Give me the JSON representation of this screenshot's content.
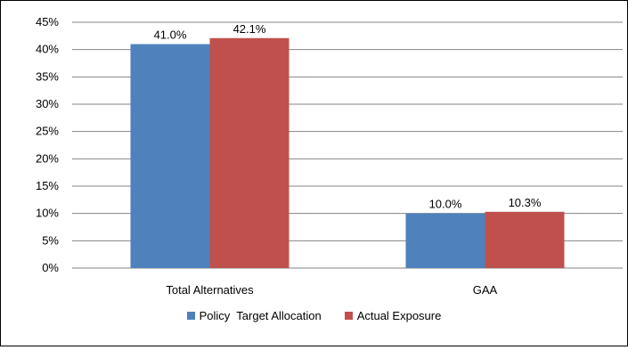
{
  "chart_data": {
    "type": "bar",
    "title": "",
    "xlabel": "",
    "ylabel": "",
    "categories": [
      "Total Alternatives",
      "GAA"
    ],
    "series": [
      {
        "name": "Policy  Target Allocation",
        "values": [
          41.0,
          10.0
        ],
        "labels": [
          "41.0%",
          "10.0%"
        ],
        "color": "#4f81bd"
      },
      {
        "name": "Actual Exposure",
        "values": [
          42.1,
          10.3
        ],
        "labels": [
          "42.1%",
          "10.3%"
        ],
        "color": "#c0504d"
      }
    ],
    "ylim": [
      0,
      45
    ],
    "yticks": [
      "0%",
      "5%",
      "10%",
      "15%",
      "20%",
      "25%",
      "30%",
      "35%",
      "40%",
      "45%"
    ],
    "grid": true,
    "legend_position": "bottom"
  }
}
